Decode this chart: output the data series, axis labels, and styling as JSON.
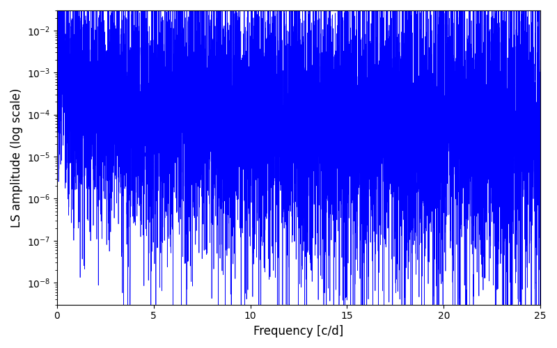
{
  "xlabel": "Frequency [c/d]",
  "ylabel": "LS amplitude (log scale)",
  "line_color": "#0000FF",
  "line_width": 0.5,
  "xlim": [
    0,
    25
  ],
  "ylim": [
    3e-09,
    0.03
  ],
  "yscale": "log",
  "n_points": 8000,
  "freq_max": 25.0,
  "seed": 7,
  "figsize": [
    8.0,
    5.0
  ],
  "dpi": 100,
  "background_color": "#ffffff",
  "tick_labelsize": 10,
  "axis_labelsize": 12
}
